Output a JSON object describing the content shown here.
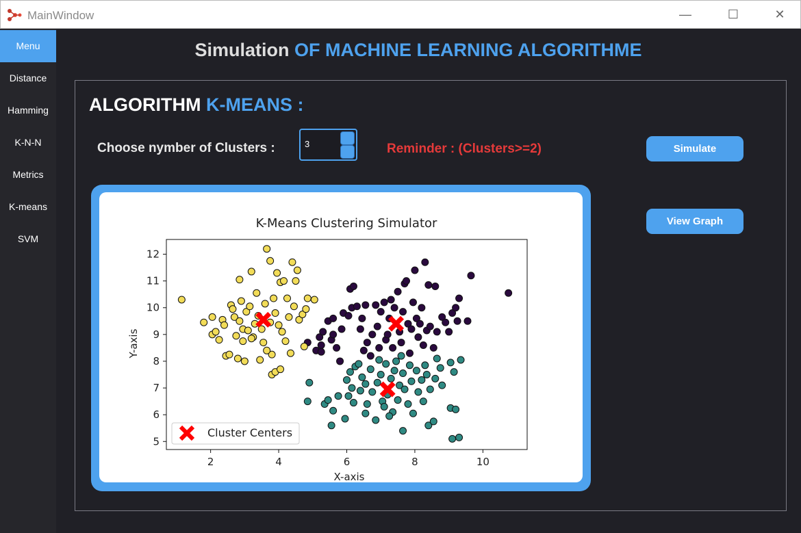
{
  "window": {
    "title": "MainWindow",
    "min_glyph": "—",
    "max_glyph": "☐",
    "close_glyph": "✕"
  },
  "sidebar": {
    "items": [
      {
        "label": "Menu",
        "active": true
      },
      {
        "label": "Distance"
      },
      {
        "label": "Hamming"
      },
      {
        "label": "K-N-N"
      },
      {
        "label": "Metrics"
      },
      {
        "label": "K-means"
      },
      {
        "label": "SVM"
      }
    ]
  },
  "header": {
    "title_prefix": "Simulation",
    "title_accent": "OF MACHINE LEARNING ALGORITHME"
  },
  "section": {
    "title_prefix": "ALGORITHM",
    "title_accent": "K-MEANS :"
  },
  "controls": {
    "clusters_label": "Choose nymber of Clusters :",
    "clusters_value": "3",
    "reminder": "Reminder : (Clusters>=2)",
    "simulate_label": "Simulate",
    "view_graph_label": "View Graph"
  },
  "colors": {
    "accent": "#4ea2ee",
    "reminder": "#e53a3a",
    "cluster_a": "#2a0a3e",
    "cluster_b": "#2f8a83",
    "cluster_c": "#f2dc58",
    "center": "#ff0000"
  },
  "chart_data": {
    "type": "scatter",
    "title": "K-Means Clustering Simulator",
    "xlabel": "X-axis",
    "ylabel": "Y-axis",
    "xlim": [
      0.7,
      11.3
    ],
    "ylim": [
      4.7,
      12.55
    ],
    "xticks": [
      2,
      4,
      6,
      8,
      10
    ],
    "yticks": [
      5,
      6,
      7,
      8,
      9,
      10,
      11,
      12
    ],
    "legend": {
      "label": "Cluster Centers",
      "position": "lower-left"
    },
    "centers": [
      [
        3.55,
        9.55
      ],
      [
        7.45,
        9.4
      ],
      [
        7.2,
        6.95
      ]
    ],
    "series": [
      {
        "color": "#2a0a3e",
        "points": [
          [
            4.85,
            8.7
          ],
          [
            5.2,
            8.9
          ],
          [
            5.3,
            9.1
          ],
          [
            5.1,
            8.4
          ],
          [
            5.25,
            8.6
          ],
          [
            5.45,
            9.5
          ],
          [
            5.6,
            9.6
          ],
          [
            5.55,
            8.8
          ],
          [
            5.6,
            9.0
          ],
          [
            5.7,
            8.5
          ],
          [
            5.8,
            8.0
          ],
          [
            5.85,
            9.2
          ],
          [
            5.9,
            9.8
          ],
          [
            6.05,
            9.7
          ],
          [
            6.15,
            10.0
          ],
          [
            6.1,
            10.7
          ],
          [
            6.2,
            10.8
          ],
          [
            6.3,
            10.05
          ],
          [
            6.4,
            9.2
          ],
          [
            6.45,
            9.6
          ],
          [
            6.55,
            10.1
          ],
          [
            6.5,
            8.4
          ],
          [
            6.6,
            8.7
          ],
          [
            6.75,
            9.0
          ],
          [
            6.85,
            10.1
          ],
          [
            6.9,
            9.3
          ],
          [
            6.95,
            8.5
          ],
          [
            7.0,
            9.85
          ],
          [
            7.1,
            10.2
          ],
          [
            7.15,
            8.8
          ],
          [
            7.2,
            9.0
          ],
          [
            7.25,
            9.6
          ],
          [
            7.3,
            10.3
          ],
          [
            7.35,
            8.5
          ],
          [
            7.4,
            10.0
          ],
          [
            7.5,
            10.6
          ],
          [
            7.55,
            9.1
          ],
          [
            7.6,
            8.7
          ],
          [
            7.65,
            9.85
          ],
          [
            7.7,
            10.9
          ],
          [
            7.75,
            11.0
          ],
          [
            7.8,
            9.4
          ],
          [
            7.85,
            8.3
          ],
          [
            7.9,
            9.2
          ],
          [
            7.95,
            10.2
          ],
          [
            8.0,
            11.4
          ],
          [
            8.05,
            9.6
          ],
          [
            8.1,
            8.9
          ],
          [
            8.15,
            9.4
          ],
          [
            8.2,
            10.0
          ],
          [
            8.25,
            8.6
          ],
          [
            8.3,
            11.7
          ],
          [
            8.35,
            9.15
          ],
          [
            8.4,
            10.85
          ],
          [
            8.45,
            9.3
          ],
          [
            8.55,
            8.5
          ],
          [
            8.6,
            10.8
          ],
          [
            8.65,
            9.1
          ],
          [
            8.8,
            9.65
          ],
          [
            8.9,
            9.45
          ],
          [
            9.0,
            9.1
          ],
          [
            9.1,
            9.8
          ],
          [
            9.2,
            10.0
          ],
          [
            9.25,
            9.5
          ],
          [
            9.3,
            10.35
          ],
          [
            9.55,
            9.5
          ],
          [
            9.65,
            11.2
          ],
          [
            10.75,
            10.55
          ],
          [
            5.25,
            8.35
          ],
          [
            6.7,
            8.2
          ]
        ]
      },
      {
        "color": "#2f8a83",
        "points": [
          [
            4.9,
            7.2
          ],
          [
            4.85,
            6.5
          ],
          [
            5.35,
            6.4
          ],
          [
            5.45,
            6.55
          ],
          [
            5.55,
            5.6
          ],
          [
            5.6,
            6.15
          ],
          [
            5.75,
            6.7
          ],
          [
            5.95,
            5.85
          ],
          [
            6.0,
            7.3
          ],
          [
            6.05,
            6.7
          ],
          [
            6.1,
            7.6
          ],
          [
            6.15,
            7.0
          ],
          [
            6.2,
            6.45
          ],
          [
            6.25,
            7.8
          ],
          [
            6.35,
            7.9
          ],
          [
            6.4,
            6.9
          ],
          [
            6.45,
            7.4
          ],
          [
            6.55,
            7.15
          ],
          [
            6.6,
            6.4
          ],
          [
            6.7,
            7.7
          ],
          [
            6.75,
            6.85
          ],
          [
            6.85,
            5.8
          ],
          [
            6.9,
            7.2
          ],
          [
            6.95,
            8.05
          ],
          [
            7.0,
            7.5
          ],
          [
            7.05,
            6.5
          ],
          [
            7.1,
            6.3
          ],
          [
            7.15,
            7.9
          ],
          [
            7.2,
            6.75
          ],
          [
            7.3,
            7.35
          ],
          [
            7.35,
            6.1
          ],
          [
            7.4,
            7.65
          ],
          [
            7.45,
            8.0
          ],
          [
            7.5,
            6.55
          ],
          [
            7.55,
            7.1
          ],
          [
            7.6,
            8.2
          ],
          [
            7.65,
            7.55
          ],
          [
            7.7,
            6.95
          ],
          [
            7.8,
            6.4
          ],
          [
            7.85,
            7.85
          ],
          [
            7.9,
            7.25
          ],
          [
            7.95,
            6.05
          ],
          [
            8.05,
            7.65
          ],
          [
            8.1,
            6.85
          ],
          [
            8.2,
            7.3
          ],
          [
            8.25,
            6.5
          ],
          [
            8.3,
            7.85
          ],
          [
            8.35,
            7.5
          ],
          [
            8.4,
            5.6
          ],
          [
            8.45,
            6.95
          ],
          [
            8.55,
            5.75
          ],
          [
            8.6,
            7.35
          ],
          [
            8.65,
            8.1
          ],
          [
            8.75,
            7.75
          ],
          [
            8.8,
            7.1
          ],
          [
            9.05,
            6.25
          ],
          [
            9.1,
            5.1
          ],
          [
            9.15,
            7.6
          ],
          [
            9.3,
            5.15
          ],
          [
            9.35,
            8.05
          ],
          [
            9.05,
            7.95
          ],
          [
            7.65,
            5.4
          ],
          [
            9.2,
            6.2
          ],
          [
            6.55,
            6.05
          ],
          [
            7.25,
            5.95
          ]
        ]
      },
      {
        "color": "#f2dc58",
        "points": [
          [
            1.15,
            10.3
          ],
          [
            1.8,
            9.45
          ],
          [
            2.05,
            9.65
          ],
          [
            2.05,
            9.0
          ],
          [
            2.15,
            9.1
          ],
          [
            2.25,
            8.8
          ],
          [
            2.35,
            9.55
          ],
          [
            2.4,
            9.35
          ],
          [
            2.45,
            8.2
          ],
          [
            2.55,
            8.25
          ],
          [
            2.6,
            10.1
          ],
          [
            2.65,
            9.95
          ],
          [
            2.7,
            9.65
          ],
          [
            2.75,
            8.95
          ],
          [
            2.8,
            8.1
          ],
          [
            2.85,
            11.05
          ],
          [
            2.85,
            9.5
          ],
          [
            2.9,
            10.25
          ],
          [
            2.95,
            9.2
          ],
          [
            2.95,
            8.75
          ],
          [
            3.0,
            8.0
          ],
          [
            3.05,
            9.85
          ],
          [
            3.1,
            9.15
          ],
          [
            3.15,
            10.05
          ],
          [
            3.2,
            11.35
          ],
          [
            3.25,
            8.9
          ],
          [
            3.3,
            9.4
          ],
          [
            3.35,
            10.55
          ],
          [
            3.4,
            9.7
          ],
          [
            3.45,
            8.05
          ],
          [
            3.5,
            9.2
          ],
          [
            3.55,
            8.7
          ],
          [
            3.6,
            10.15
          ],
          [
            3.65,
            12.2
          ],
          [
            3.75,
            11.75
          ],
          [
            3.75,
            9.45
          ],
          [
            3.8,
            8.25
          ],
          [
            3.85,
            10.35
          ],
          [
            3.9,
            9.8
          ],
          [
            3.95,
            11.3
          ],
          [
            4.0,
            9.35
          ],
          [
            4.05,
            10.95
          ],
          [
            4.1,
            9.1
          ],
          [
            4.15,
            11.0
          ],
          [
            4.2,
            8.75
          ],
          [
            4.25,
            10.35
          ],
          [
            4.3,
            9.65
          ],
          [
            4.4,
            11.7
          ],
          [
            4.45,
            10.05
          ],
          [
            4.5,
            11.0
          ],
          [
            4.55,
            11.4
          ],
          [
            4.6,
            9.55
          ],
          [
            4.7,
            9.75
          ],
          [
            4.75,
            8.55
          ],
          [
            4.8,
            9.95
          ],
          [
            4.85,
            10.35
          ],
          [
            5.05,
            10.3
          ],
          [
            3.8,
            7.5
          ],
          [
            3.9,
            7.6
          ],
          [
            4.05,
            7.7
          ],
          [
            3.65,
            8.4
          ],
          [
            3.2,
            8.85
          ],
          [
            4.35,
            8.3
          ]
        ]
      }
    ]
  }
}
